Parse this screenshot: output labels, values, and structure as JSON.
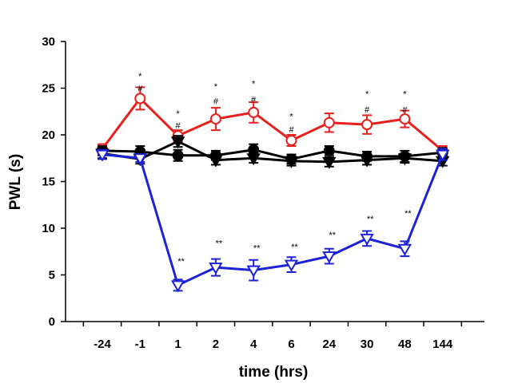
{
  "chart_data": {
    "type": "line",
    "xlabel": "time (hrs)",
    "ylabel": "PWL (s)",
    "categories": [
      "-24",
      "-1",
      "1",
      "2",
      "4",
      "6",
      "24",
      "30",
      "48",
      "144"
    ],
    "yticks": [
      "0",
      "5",
      "10",
      "15",
      "20",
      "25",
      "30"
    ],
    "ylim": [
      0,
      30
    ],
    "grid": false,
    "series": [
      {
        "color": "#e8201c",
        "marker": "open-circle",
        "values": [
          18.5,
          23.9,
          19.9,
          21.7,
          22.4,
          19.4,
          21.3,
          21.1,
          21.7,
          18.3
        ],
        "errors": [
          0.5,
          1.2,
          0.6,
          1.2,
          1.1,
          0.6,
          1.0,
          1.0,
          0.9,
          0.5
        ]
      },
      {
        "color": "#000000",
        "marker": "filled-circle",
        "values": [
          18.3,
          18.2,
          17.8,
          17.8,
          18.4,
          17.4,
          18.3,
          17.7,
          17.7,
          18.1
        ],
        "errors": [
          0.5,
          0.6,
          0.6,
          0.5,
          0.6,
          0.5,
          0.5,
          0.5,
          0.6,
          0.5
        ]
      },
      {
        "color": "#000000",
        "marker": "filled-triangle-down",
        "values": [
          18.0,
          17.4,
          19.3,
          17.3,
          17.5,
          17.2,
          17.1,
          17.3,
          17.5,
          17.2
        ],
        "errors": [
          0.5,
          0.5,
          0.6,
          0.5,
          0.5,
          0.5,
          0.5,
          0.5,
          0.5,
          0.5
        ]
      },
      {
        "color": "#1c22d8",
        "marker": "open-triangle-down",
        "values": [
          17.9,
          17.5,
          3.9,
          5.8,
          5.5,
          6.1,
          7.0,
          8.9,
          7.8,
          17.9
        ],
        "errors": [
          0.5,
          0.4,
          0.6,
          0.9,
          1.1,
          0.8,
          0.8,
          0.8,
          0.8,
          0.6
        ]
      }
    ],
    "annotations": [
      {
        "category": "-1",
        "y": 26.4,
        "text": "*"
      },
      {
        "category": "-1",
        "y": 25.1,
        "text": "#"
      },
      {
        "category": "1",
        "y": 22.4,
        "text": "*"
      },
      {
        "category": "1",
        "y": 21.1,
        "text": "#"
      },
      {
        "category": "2",
        "y": 25.3,
        "text": "*"
      },
      {
        "category": "2",
        "y": 23.7,
        "text": "#"
      },
      {
        "category": "4",
        "y": 25.6,
        "text": "*"
      },
      {
        "category": "4",
        "y": 23.9,
        "text": "#"
      },
      {
        "category": "6",
        "y": 22.1,
        "text": "*"
      },
      {
        "category": "6",
        "y": 20.7,
        "text": "#"
      },
      {
        "category": "30",
        "y": 24.5,
        "text": "*"
      },
      {
        "category": "30",
        "y": 22.8,
        "text": "#"
      },
      {
        "category": "48",
        "y": 24.5,
        "text": "*"
      },
      {
        "category": "48",
        "y": 22.8,
        "text": "#"
      },
      {
        "category": "1",
        "y": 6.6,
        "text": "**"
      },
      {
        "category": "2",
        "y": 8.5,
        "text": "**"
      },
      {
        "category": "4",
        "y": 8.0,
        "text": "**"
      },
      {
        "category": "6",
        "y": 8.1,
        "text": "**"
      },
      {
        "category": "24",
        "y": 9.4,
        "text": "**"
      },
      {
        "category": "30",
        "y": 11.1,
        "text": "**"
      },
      {
        "category": "48",
        "y": 11.7,
        "text": "**"
      }
    ]
  }
}
